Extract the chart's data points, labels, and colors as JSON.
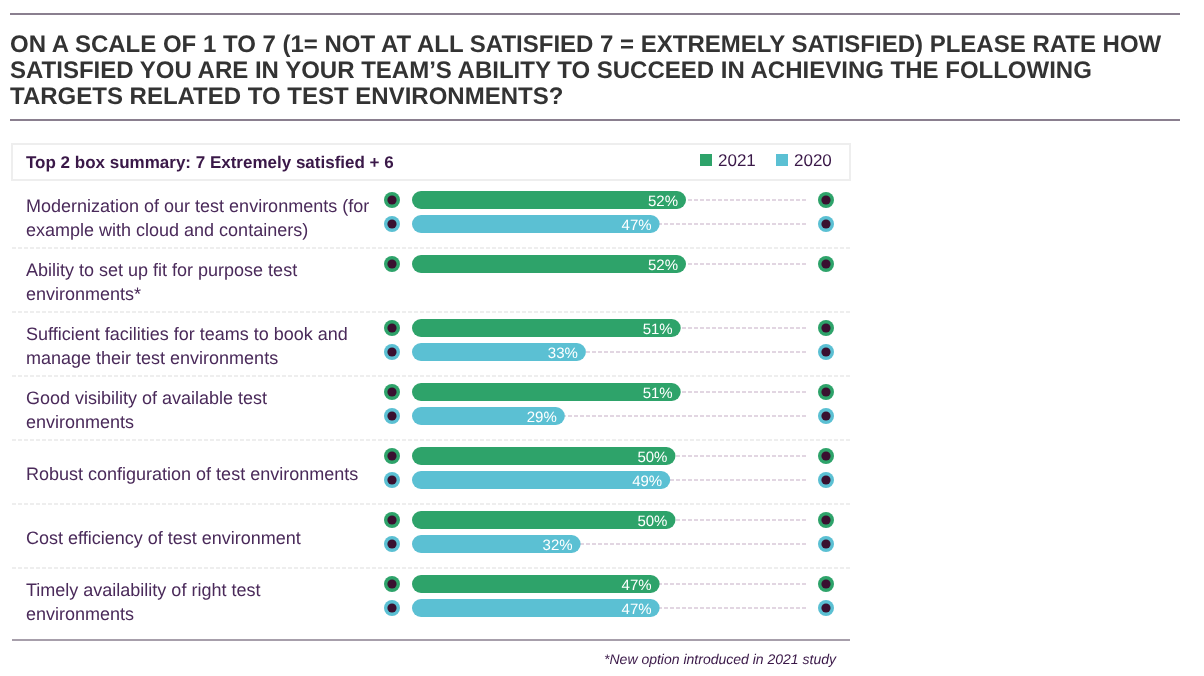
{
  "chart_data": {
    "type": "bar",
    "orientation": "horizontal",
    "title": "ON A SCALE OF 1 TO 7 (1= NOT AT ALL SATISFIED 7 = EXTREMELY SATISFIED) PLEASE RATE HOW SATISFIED YOU ARE IN YOUR TEAM’S ABILITY TO SUCCEED IN ACHIEVING THE FOLLOWING TARGETS RELATED TO TEST ENVIRONMENTS?",
    "subtitle": "Top 2 box summary: 7 Extremely satisfied + 6",
    "categories": [
      "Modernization of our test environments (for example with cloud and containers)",
      "Ability to set up fit for purpose test environments*",
      "Sufficient facilities for teams to book and manage their test environments",
      "Good visibility of available test environments",
      "Robust configuration of test environments",
      "Cost efficiency of test environment",
      "Timely availability of right test environments"
    ],
    "series": [
      {
        "name": "2021",
        "color": "#2ea36a",
        "values": [
          52,
          52,
          51,
          51,
          50,
          50,
          47
        ],
        "value_labels": [
          "52%",
          "52%",
          "51%",
          "51%",
          "50%",
          "50%",
          "47%"
        ]
      },
      {
        "name": "2020",
        "color": "#5bc0d3",
        "values": [
          47,
          null,
          33,
          29,
          49,
          32,
          47
        ],
        "value_labels": [
          "47%",
          null,
          "33%",
          "29%",
          "49%",
          "32%",
          "47%"
        ]
      }
    ],
    "tick_labels": "y",
    "legend": "top right",
    "grid": "y",
    "annotations": [
      "*New option introduced in 2021 study"
    ]
  }
}
